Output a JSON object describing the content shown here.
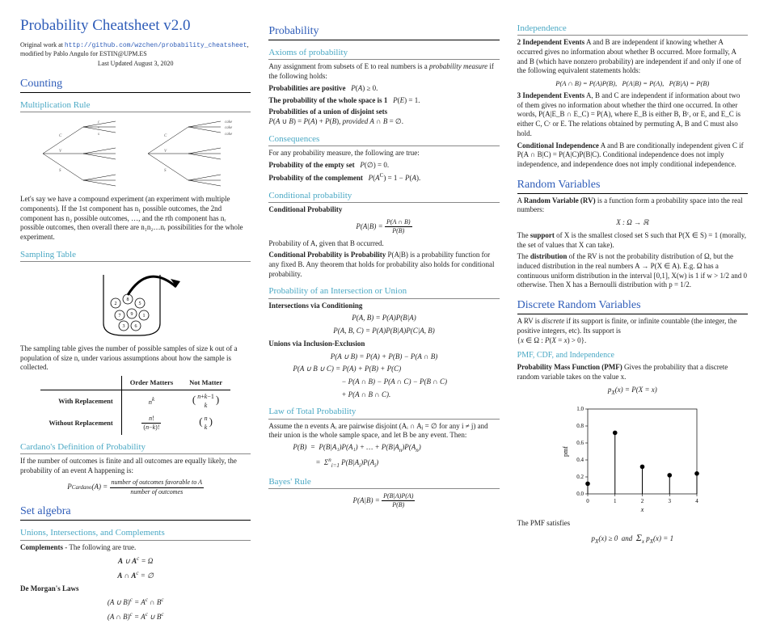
{
  "title": "Probability Cheatsheet v2.0",
  "meta1_prefix": "Original work at ",
  "meta1_link": "http://github.com/wzchen/probability_cheatsheet",
  "meta1_suffix": ", modified by Pablo Angulo for ESTIN@UPM.ES",
  "meta2": "Last Updated August 3, 2020",
  "col1": {
    "counting": "Counting",
    "multrule": "Multiplication Rule",
    "multrule_text": "Let's say we have a compound experiment (an experiment with multiple components). If the 1st component has n₁ possible outcomes, the 2nd component has n₂ possible outcomes, …, and the rth component has nᵣ possible outcomes, then overall there are n₁n₂…nᵣ possibilities for the whole experiment.",
    "sampling": "Sampling Table",
    "sampling_text": "The sampling table gives the number of possible samples of size k out of a population of size n, under various assumptions about how the sample is collected.",
    "table": {
      "h1": "Order Matters",
      "h2": "Not Matter",
      "r1": "With Replacement",
      "r1c1": "nᵏ",
      "r1c2": "(n+k−1 choose k)",
      "r2": "Without Replacement",
      "r2c1": "n!/(n−k)!",
      "r2c2": "(n choose k)"
    },
    "cardano": "Cardano's Definition of Probability",
    "cardano_text": "If the number of outcomes is finite and all outcomes are equally likely, the probability of an event A happening is:",
    "cardano_formula_lhs": "P_Cardano(A) = ",
    "cardano_num": "number of outcomes favorable to A",
    "cardano_den": "number of outcomes",
    "setalg": "Set algebra",
    "unions": "Unions, Intersections, and Complements",
    "complements": "Complements",
    "complements_text": " - The following are true.",
    "comp_f1": "A ∪ Aᶜ = Ω",
    "comp_f2": "A ∩ Aᶜ = ∅",
    "demorgan": "De Morgan's Laws",
    "dm_f1": "(A ∪ B)ᶜ = Aᶜ ∩ Bᶜ",
    "dm_f2": "(A ∩ B)ᶜ = Aᶜ ∪ Bᶜ"
  },
  "col2": {
    "probability": "Probability",
    "axioms": "Axioms of probability",
    "axioms_text_a": "Any assignment from subsets of E to real numbers is a ",
    "axioms_text_b": "probability measure",
    "axioms_text_c": " if the following holds:",
    "ax1a": "Probabilities are positive",
    "ax1b": "  P(A) ≥ 0.",
    "ax2a": "The probability of the whole space is 1",
    "ax2b": "  P(E) = 1.",
    "ax3a": "Probabilities of a union of disjoint sets",
    "ax3b": "P(A ∪ B) = P(A) + P(B), provided A ∩ B = ∅.",
    "consequences": "Consequences",
    "cons_text": "For any probability measure, the following are true:",
    "cons1a": "Probability of the empty set",
    "cons1b": "  P(∅) = 0.",
    "cons2a": "Probability of the complement",
    "cons2b": "  P(Aᶜ) = 1 − P(A).",
    "condprob": "Conditional probability",
    "condprob_b": "Conditional Probability",
    "condprob_f": "P(A|B) = P(A ∩ B) / P(B)",
    "condprob_text": "Probability of A, given that B occurred.",
    "cpip_a": "Conditional Probability is Probability",
    "cpip_b": "  P(A|B) is a probability function for any fixed B. Any theorem that holds for probability also holds for conditional probability.",
    "intersec": "Probability of an Intersection or Union",
    "intcond": "Intersections via Conditioning",
    "intcond_f1": "P(A, B) = P(A)P(B|A)",
    "intcond_f2": "P(A, B, C) = P(A)P(B|A)P(C|A, B)",
    "inclexcl": "Unions via Inclusion-Exclusion",
    "ie_f1": "P(A ∪ B) = P(A) + P(B) − P(A ∩ B)",
    "ie_f2": "P(A ∪ B ∪ C) = P(A) + P(B) + P(C)",
    "ie_f3": "− P(A ∩ B) − P(A ∩ C) − P(B ∩ C)",
    "ie_f4": "+ P(A ∩ B ∩ C).",
    "ltp": "Law of Total Probability",
    "ltp_text": "Assume the n events Aᵢ are pairwise disjoint (Aᵢ ∩ Aⱼ = ∅ for any i ≠ j) and their union is the whole sample space, and let B be any event. Then:",
    "ltp_f1": "P(B)  =  P(B|A₁)P(A₁) + … + P(B|Aₙ)P(Aₙ)",
    "ltp_f2": "=  Σⁿᵢ₌₁ P(B|Aᵢ)P(Aᵢ)",
    "bayes": "Bayes' Rule",
    "bayes_f": "P(A|B) = P(B|A)P(A) / P(B)"
  },
  "col3": {
    "indep": "Independence",
    "indep2_a": "2 Independent Events",
    "indep2_b": "  A and B are independent if knowing whether A occurred gives no information about whether B occurred. More formally, A and B (which have nonzero probability) are independent if and only if one of the following equivalent statements holds:",
    "indep2_f": "P(A ∩ B) = P(A)P(B),   P(A|B) = P(A),   P(B|A) = P(B)",
    "indep3_a": "3 Independent Events",
    "indep3_b": "  A, B and C are independent if information about two of them gives no information about whether the third one occurred. In other words, P(A|E_B ∩ E_C) = P(A), where E_B is either B, Bᶜ, or E, and E_C is either C, Cᶜ or E. The relations obtained by permuting A, B and C must also hold.",
    "condind_a": "Conditional Independence",
    "condind_b": "  A and B are conditionally independent given C if P(A ∩ B|C) = P(A|C)P(B|C). Conditional independence does not imply independence, and independence does not imply conditional independence.",
    "rv": "Random Variables",
    "rv_text_a": "A ",
    "rv_text_b": "Random Variable (RV)",
    "rv_text_c": " is a function form a probability space into the real numbers:",
    "rv_f": "X : Ω → ℝ",
    "supp_a": "The ",
    "supp_b": "support",
    "supp_c": " of X is the smallest closed set S such that P(X ∈ S) = 1 (morally, the set of values that X can take).",
    "dist_a": "The ",
    "dist_b": "distribution",
    "dist_c": " of the RV is not the probability distribution of Ω, but the induced distribution in the real numbers A → P(X ∈ A). E.g. Ω has a continuous uniform distribution in the interval [0,1], X(w) is 1 if w > 1/2 and 0 otherwise. Then X has a Bernoulli distribution with p = 1/2.",
    "drv": "Discrete Random Variables",
    "drv_text": "A RV is discrete if its support is finite, or infinite countable (the integer, the positive integers, etc). Its support is {x ∈ Ω : P(X = x) > 0}.",
    "pmf": "PMF, CDF, and Independence",
    "pmf_a": "Probability Mass Function (PMF)",
    "pmf_b": "  Gives the probability that a discrete random variable takes on the value x.",
    "pmf_f": "p_X(x) = P(X = x)",
    "pmf_sat": "The PMF satisfies",
    "pmf_sat_f": "p_X(x) ≥ 0  and  Σₓ p_X(x) = 1",
    "chart": {
      "x": [
        0,
        1,
        2,
        3,
        4
      ],
      "y": [
        0.12,
        0.72,
        0.32,
        0.22,
        0.24
      ],
      "ylim": [
        0.0,
        1.0
      ],
      "ytick": [
        0.0,
        0.2,
        0.4,
        0.6,
        0.8,
        1.0
      ],
      "xlabel": "x",
      "ylabel": "pmf",
      "dot_color": "#000000",
      "bg": "#ffffff"
    }
  }
}
